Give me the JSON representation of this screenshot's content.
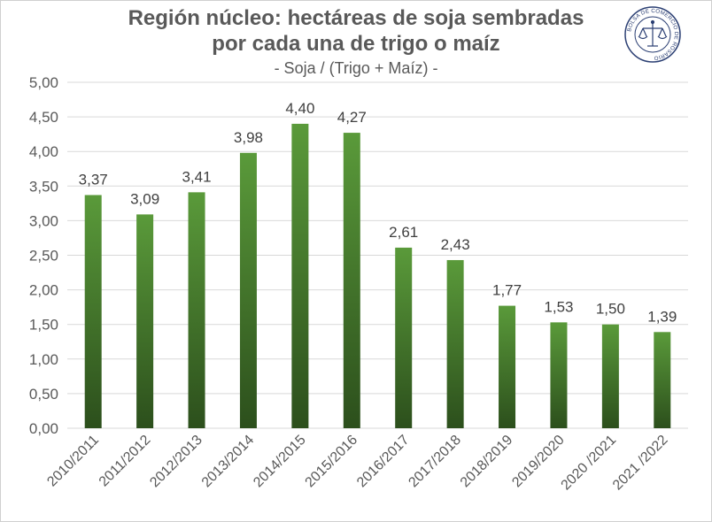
{
  "chart_data": {
    "type": "bar",
    "title": "Región núcleo: hectáreas de soja sembradas",
    "title_line2": "por cada una de trigo o maíz",
    "subtitle": "- Soja / (Trigo + Maíz) -",
    "categories": [
      "2010/2011",
      "2011/2012",
      "2012/2013",
      "2013/2014",
      "2014/2015",
      "2015/2016",
      "2016/2017",
      "2017/2018",
      "2018/2019",
      "2019/2020",
      "2020 /2021",
      "2021 /2022"
    ],
    "values": [
      3.37,
      3.09,
      3.41,
      3.98,
      4.4,
      4.27,
      2.61,
      2.43,
      1.77,
      1.53,
      1.5,
      1.39
    ],
    "data_labels": [
      "3,37",
      "3,09",
      "3,41",
      "3,98",
      "4,40",
      "4,27",
      "2,61",
      "2,43",
      "1,77",
      "1,53",
      "1,50",
      "1,39"
    ],
    "y_ticks": [
      "0,00",
      "0,50",
      "1,00",
      "1,50",
      "2,00",
      "2,50",
      "3,00",
      "3,50",
      "4,00",
      "4,50",
      "5,00"
    ],
    "ylim": [
      0,
      5
    ],
    "xlabel": "",
    "ylabel": "",
    "grid": true,
    "colors": {
      "bar_top": "#5a9a3a",
      "bar_bottom": "#2c4f1c",
      "grid": "#d9d9d9",
      "text": "#595959"
    }
  },
  "logo": {
    "text": "BOLSA DE COMERCIO DE ROSARIO",
    "icon": "scales-of-justice-icon"
  }
}
